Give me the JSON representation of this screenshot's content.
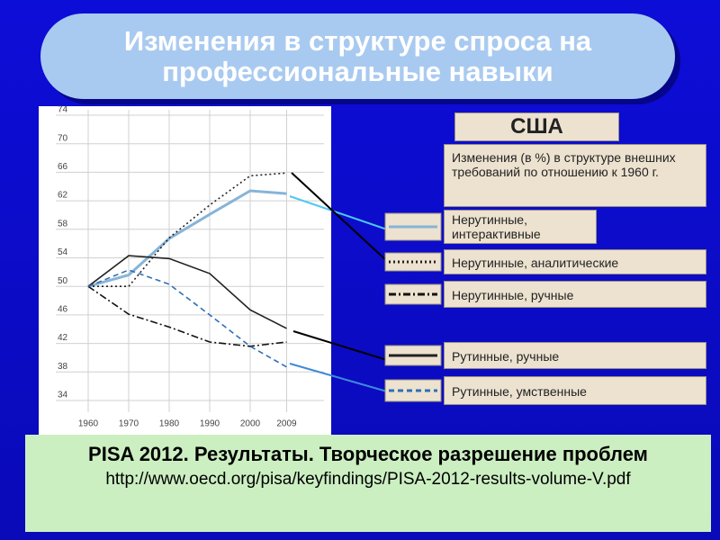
{
  "header": {
    "title": "Изменения в структуре спроса на профессиональные навыки"
  },
  "chart_data": {
    "type": "line",
    "title": "США",
    "subtitle": "Изменения (в %) в структуре внешних требований по отношению к 1960 г.",
    "x": [
      1960,
      1970,
      1980,
      1990,
      2000,
      2009
    ],
    "xlim": [
      1958,
      2012
    ],
    "xticks": [
      1960,
      1970,
      1980,
      1990,
      2000,
      2009
    ],
    "ylim": [
      34,
      74
    ],
    "yticks": [
      34,
      38,
      42,
      46,
      50,
      54,
      58,
      62,
      66,
      70,
      74
    ],
    "grid": true,
    "series": [
      {
        "name": "Нерутинные, интерактивные",
        "color": "#86b4d8",
        "dash": "solid",
        "values": [
          50,
          51.6,
          56.7,
          60.1,
          63.4,
          63.0
        ]
      },
      {
        "name": "Нерутинные, аналитические",
        "color": "#222222",
        "dash": "dotted",
        "values": [
          50,
          50,
          56.8,
          61.4,
          65.5,
          65.9
        ]
      },
      {
        "name": "Нерутинные, ручные",
        "color": "#111111",
        "dash": "dashdot",
        "values": [
          50,
          46.1,
          44.3,
          42.2,
          41.6,
          42.2
        ]
      },
      {
        "name": "Рутинные, ручные",
        "color": "#222222",
        "dash": "solid",
        "values": [
          50,
          54.3,
          53.9,
          51.8,
          46.7,
          44.1
        ]
      },
      {
        "name": "Рутинные, умственные",
        "color": "#2f6fb5",
        "dash": "dashed",
        "values": [
          50,
          52.3,
          50.3,
          46.0,
          41.6,
          38.7
        ]
      }
    ]
  },
  "footer": {
    "title": "PISA 2012. Результаты. Творческое разрешение проблем",
    "url": "http://www.oecd.org/pisa/keyfindings/PISA-2012-results-volume-V.pdf"
  }
}
